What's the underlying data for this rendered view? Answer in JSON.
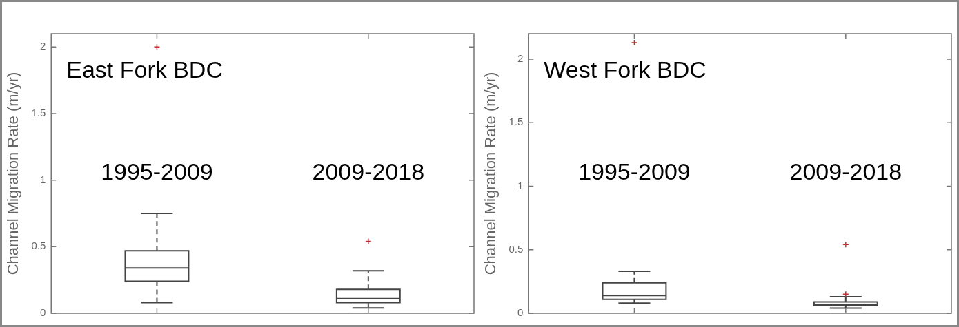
{
  "chart_data": [
    {
      "type": "box",
      "title": "East Fork BDC",
      "ylabel": "Channel Migration Rate (m/yr)",
      "categories": [
        "1995-2009",
        "2009-2018"
      ],
      "boxes": [
        {
          "low": 0.08,
          "q1": 0.24,
          "median": 0.34,
          "q3": 0.47,
          "high": 0.75,
          "outliers": [
            2.0
          ]
        },
        {
          "low": 0.04,
          "q1": 0.08,
          "median": 0.11,
          "q3": 0.18,
          "high": 0.32,
          "outliers": [
            0.54
          ]
        }
      ],
      "ylim": [
        0,
        2.1
      ],
      "yticks": [
        0,
        0.5,
        1,
        1.5,
        2
      ]
    },
    {
      "type": "box",
      "title": "West Fork BDC",
      "ylabel": "Channel Migration Rate (m/yr)",
      "categories": [
        "1995-2009",
        "2009-2018"
      ],
      "boxes": [
        {
          "low": 0.08,
          "q1": 0.11,
          "median": 0.14,
          "q3": 0.24,
          "high": 0.33,
          "outliers": [
            2.13
          ]
        },
        {
          "low": 0.04,
          "q1": 0.06,
          "median": 0.07,
          "q3": 0.09,
          "high": 0.13,
          "outliers": [
            0.15,
            0.54
          ]
        }
      ],
      "ylim": [
        0,
        2.2
      ],
      "yticks": [
        0,
        0.5,
        1,
        1.5,
        2
      ]
    }
  ]
}
